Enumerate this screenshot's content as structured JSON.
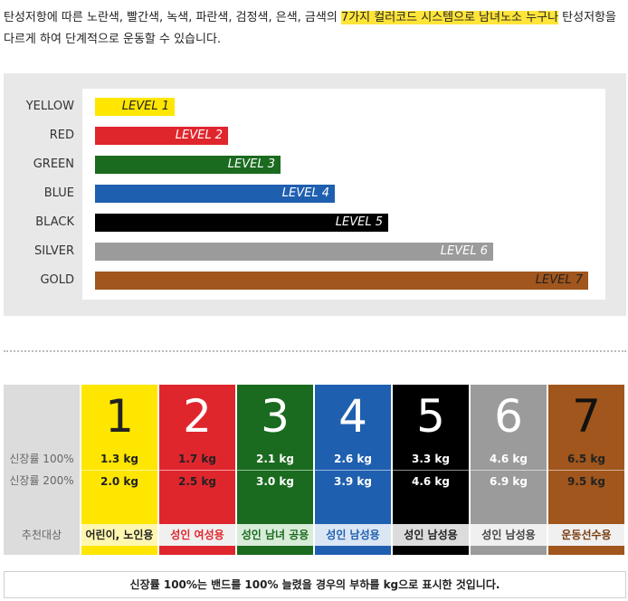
{
  "intro": {
    "before": "탄성저항에 따른 노란색, 빨간색, 녹색, 파란색, 검정색, 은색, 금색의 ",
    "highlight": "7가지 컬러코드 시스템으로 남녀노소 누구나",
    "after": " 탄성저항을 다르게 하여 단계적으로 운동할 수 있습니다."
  },
  "levels": [
    {
      "name": "YELLOW",
      "level": "LEVEL 1",
      "color": "#ffe600",
      "text_color": "#222222",
      "fraction": 0.161
    },
    {
      "name": "RED",
      "level": "LEVEL 2",
      "color": "#e0262d",
      "text_color": "#ffffff",
      "fraction": 0.27
    },
    {
      "name": "GREEN",
      "level": "LEVEL 3",
      "color": "#1a6b1f",
      "text_color": "#ffffff",
      "fraction": 0.377
    },
    {
      "name": "BLUE",
      "level": "LEVEL 4",
      "color": "#1f5fb0",
      "text_color": "#ffffff",
      "fraction": 0.486
    },
    {
      "name": "BLACK",
      "level": "LEVEL 5",
      "color": "#000000",
      "text_color": "#ffffff",
      "fraction": 0.594
    },
    {
      "name": "SILVER",
      "level": "LEVEL 6",
      "color": "#9b9b9b",
      "text_color": "#ffffff",
      "fraction": 0.807
    },
    {
      "name": "GOLD",
      "level": "LEVEL 7",
      "color": "#a0561c",
      "text_color": "#222222",
      "fraction": 1.0
    }
  ],
  "table": {
    "row_labels": [
      "신장률 100%",
      "신장률 200%",
      "추천대상"
    ],
    "columns": [
      {
        "num": "1",
        "color": "#ffe600",
        "num_color": "#222222",
        "text_color": "#222222",
        "r100": "1.3 kg",
        "r200": "2.0 kg",
        "rec": "어린이, 노인용",
        "rec_bg": "#fff7b0",
        "rec_color": "#222222"
      },
      {
        "num": "2",
        "color": "#e0262d",
        "num_color": "#ffffff",
        "text_color": "#222222",
        "r100": "1.7 kg",
        "r200": "2.5 kg",
        "rec": "성인 여성용",
        "rec_bg": "#f0f0f0",
        "rec_color": "#e0262d"
      },
      {
        "num": "3",
        "color": "#1a6b1f",
        "num_color": "#ffffff",
        "text_color": "#ffffff",
        "r100": "2.1 kg",
        "r200": "3.0 kg",
        "rec": "성인 남녀 공용",
        "rec_bg": "#d9ecd9",
        "rec_color": "#1a6b1f"
      },
      {
        "num": "4",
        "color": "#1f5fb0",
        "num_color": "#ffffff",
        "text_color": "#ffffff",
        "r100": "2.6 kg",
        "r200": "3.9 kg",
        "rec": "성인 남성용",
        "rec_bg": "#dbe6f4",
        "rec_color": "#1f5fb0"
      },
      {
        "num": "5",
        "color": "#000000",
        "num_color": "#ffffff",
        "text_color": "#ffffff",
        "r100": "3.3 kg",
        "r200": "4.6 kg",
        "rec": "성인 남성용",
        "rec_bg": "#dcdcdc",
        "rec_color": "#222222"
      },
      {
        "num": "6",
        "color": "#9b9b9b",
        "num_color": "#ffffff",
        "text_color": "#ffffff",
        "r100": "4.6 kg",
        "r200": "6.9 kg",
        "rec": "성인 남성용",
        "rec_bg": "#f0f0f0",
        "rec_color": "#444444"
      },
      {
        "num": "7",
        "color": "#a0561c",
        "num_color": "#111111",
        "text_color": "#222222",
        "r100": "6.5 kg",
        "r200": "9.5 kg",
        "rec": "운동선수용",
        "rec_bg": "#f0f0f0",
        "rec_color": "#7a3e10"
      }
    ]
  },
  "footnote": "신장률 100%는 밴드를 100% 늘렸을 경우의 부하를 kg으로 표시한 것입니다."
}
